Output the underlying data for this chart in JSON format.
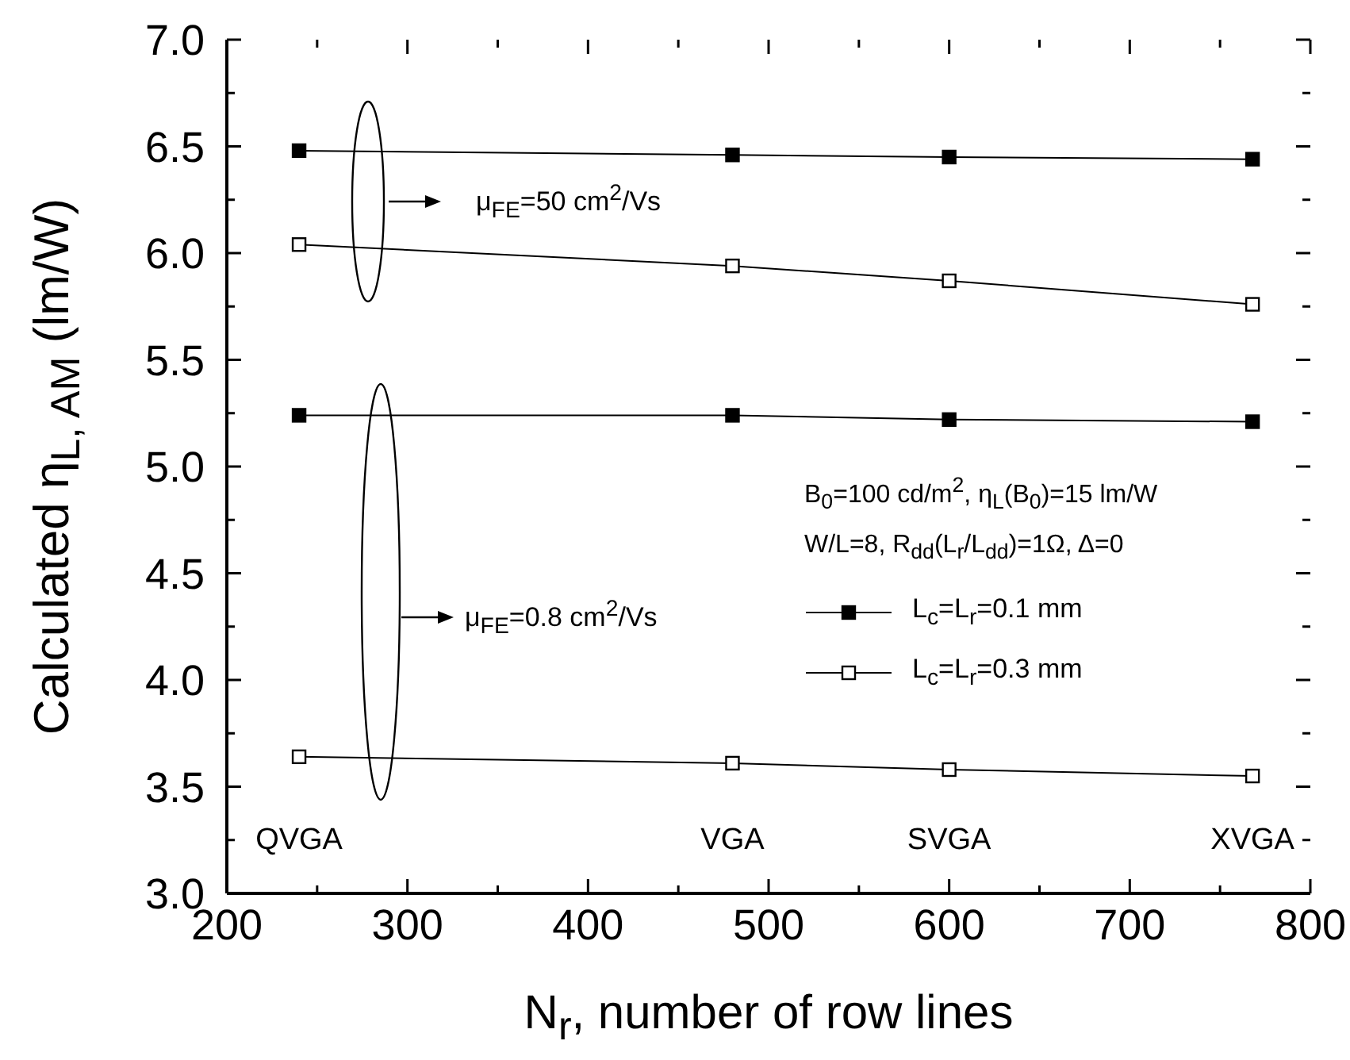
{
  "chart_data": {
    "type": "line",
    "xlabel": "N$_{r}$, number of row lines",
    "ylabel": "Calculated η$_{L, AM}$  (lm/W)",
    "x": [
      240,
      480,
      600,
      768
    ],
    "series": [
      {
        "name": "L$_{c}$=L$_{r}$=0.1 mm",
        "color": "#000000",
        "values": [
          6.48,
          6.46,
          6.45,
          6.44
        ]
      },
      {
        "name": "L$_{c}$=L$_{r}$=0.3 mm",
        "color": "#000000",
        "values": [
          6.04,
          5.94,
          5.87,
          5.76
        ]
      },
      {
        "color": "#000000",
        "values": [
          5.24,
          5.24,
          5.22,
          5.21
        ]
      },
      {
        "color": "#000000",
        "values": [
          3.64,
          3.61,
          3.58,
          3.55
        ]
      }
    ],
    "xlim": [
      200,
      800
    ],
    "xticks": [
      200,
      {
        "value": 250,
        "label": null
      },
      300,
      {
        "value": 350,
        "label": null
      },
      400,
      {
        "value": 450,
        "label": null
      },
      500,
      {
        "value": 550,
        "label": null
      },
      600,
      {
        "value": 650,
        "label": null
      },
      700,
      {
        "value": 750,
        "label": null
      },
      800
    ],
    "ylim": [
      3.0,
      7.0
    ],
    "yticks": [
      {
        "value": 3.0,
        "label": "3.0"
      },
      {
        "value": 3.25,
        "label": null
      },
      {
        "value": 3.5,
        "label": "3.5"
      },
      {
        "value": 3.75,
        "label": null
      },
      {
        "value": 4.0,
        "label": "4.0"
      },
      {
        "value": 4.25,
        "label": null
      },
      {
        "value": 4.5,
        "label": "4.5"
      },
      {
        "value": 4.75,
        "label": null
      },
      {
        "value": 5.0,
        "label": "5.0"
      },
      {
        "value": 5.25,
        "label": null
      },
      {
        "value": 5.5,
        "label": "5.5"
      },
      {
        "value": 5.75,
        "label": null
      },
      {
        "value": 6.0,
        "label": "6.0"
      },
      {
        "value": 6.25,
        "label": null
      },
      {
        "value": 6.5,
        "label": "6.5"
      },
      {
        "value": 6.75,
        "label": null
      },
      {
        "value": 7.0,
        "label": "7.0"
      }
    ],
    "marker": "square",
    "line_style": "solid",
    "grid": false,
    "legend": "right",
    "annotations": [
      "QVGA",
      "VGA",
      "SVGA",
      "XVGA",
      "μ$_{FE}$=50 cm$^{2}$/Vs",
      "μ$_{FE}$=0.8 cm$^{2}$/Vs",
      "B$_{0}$=100 cd/m$^{2}$, η$_{L}$(B$_{0}$)=15 lm/W",
      "W/L=8, R$_{dd}$(L$_{r}$/L$_{dd}$)=1Ω, Δ=0"
    ]
  }
}
